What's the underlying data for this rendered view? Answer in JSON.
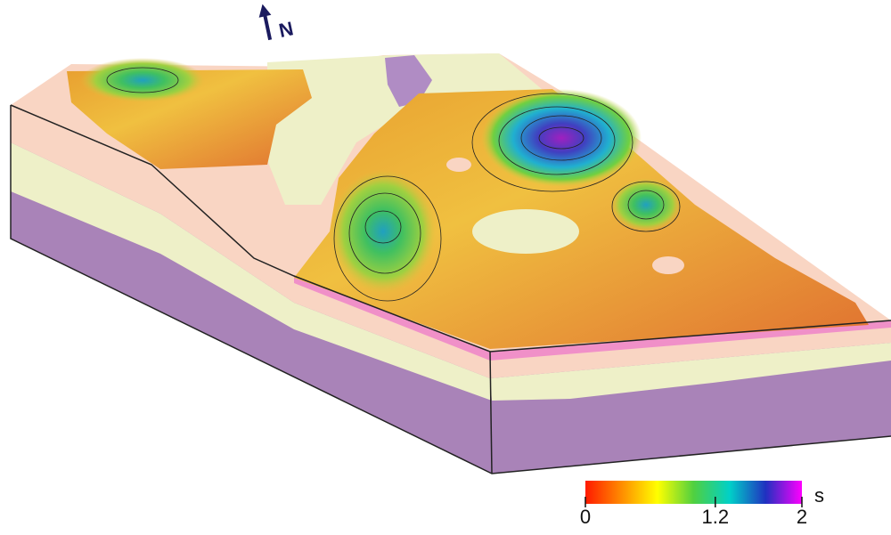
{
  "north_label": "N",
  "colorbar": {
    "unit": "s",
    "range": [
      0,
      2
    ],
    "ticks": [
      0,
      1.2,
      2
    ],
    "colors": [
      "#ff1a00",
      "#ff8c00",
      "#ffff00",
      "#50d040",
      "#00d0c8",
      "#2030c0",
      "#ff00ff"
    ]
  }
}
